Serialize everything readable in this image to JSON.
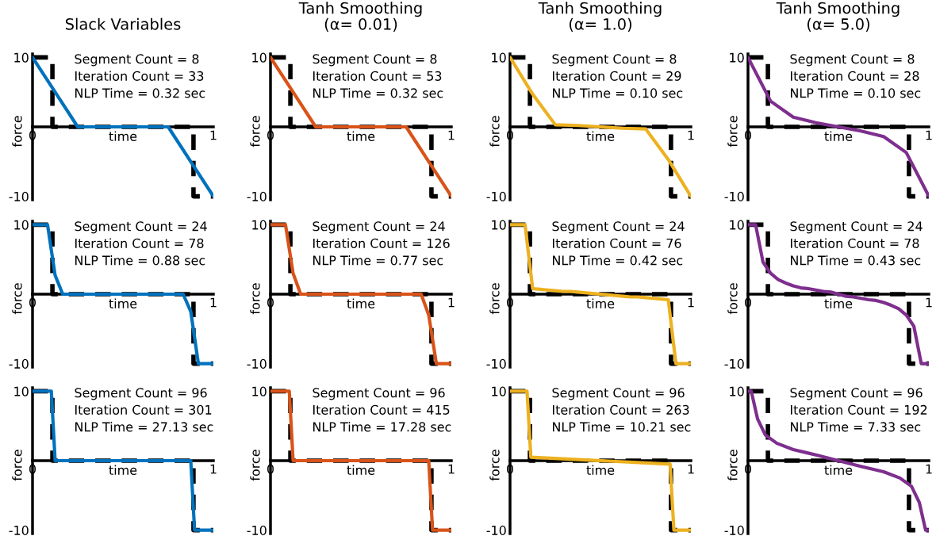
{
  "chart_data": [
    {
      "type": "line",
      "title": "Slack Variables",
      "xlabel": "time",
      "ylabel": "force",
      "xlim": [
        0,
        1
      ],
      "ylim": [
        -10.5,
        10.5
      ],
      "xticks": [
        0,
        1
      ],
      "yticks": [
        -10,
        10
      ],
      "line_style": "solid",
      "annotations": [
        "Segment Count = 8",
        "Iteration Count = 33",
        "NLP Time = 0.32 sec"
      ],
      "series": [
        {
          "color": "#000000",
          "line_style": "dashed",
          "x": [
            0,
            0.11,
            0.11,
            0.89,
            0.89,
            1
          ],
          "values": [
            10,
            10,
            0,
            0,
            -10,
            -10
          ]
        },
        {
          "color": "#0072bd",
          "x": [
            0,
            0.125,
            0.25,
            0.375,
            0.5,
            0.625,
            0.75,
            0.875,
            1
          ],
          "values": [
            10,
            5,
            0,
            0,
            0,
            0,
            0,
            -5,
            -10
          ]
        }
      ]
    },
    {
      "type": "line",
      "title": "Tanh Smoothing\n(α= 0.01)",
      "xlabel": "time",
      "ylabel": "force",
      "xlim": [
        0,
        1
      ],
      "ylim": [
        -10.5,
        10.5
      ],
      "xticks": [
        0,
        1
      ],
      "yticks": [
        -10,
        10
      ],
      "line_style": "solid",
      "annotations": [
        "Segment Count = 8",
        "Iteration Count = 53",
        "NLP Time = 0.32 sec"
      ],
      "series": [
        {
          "color": "#000000",
          "line_style": "dashed",
          "x": [
            0,
            0.11,
            0.11,
            0.89,
            0.89,
            1
          ],
          "values": [
            10,
            10,
            0,
            0,
            -10,
            -10
          ]
        },
        {
          "color": "#d95319",
          "x": [
            0,
            0.125,
            0.25,
            0.375,
            0.5,
            0.625,
            0.75,
            0.875,
            1
          ],
          "values": [
            10,
            5,
            0,
            0,
            0,
            0,
            0,
            -5,
            -10
          ]
        }
      ]
    },
    {
      "type": "line",
      "title": "Tanh Smoothing\n(α= 1.0)",
      "xlabel": "time",
      "ylabel": "force",
      "xlim": [
        0,
        1
      ],
      "ylim": [
        -10.5,
        10.5
      ],
      "xticks": [
        0,
        1
      ],
      "yticks": [
        -10,
        10
      ],
      "line_style": "solid",
      "annotations": [
        "Segment Count = 8",
        "Iteration Count = 29",
        "NLP Time = 0.10 sec"
      ],
      "series": [
        {
          "color": "#000000",
          "line_style": "dashed",
          "x": [
            0,
            0.11,
            0.11,
            0.89,
            0.89,
            1
          ],
          "values": [
            10,
            10,
            0,
            0,
            -10,
            -10
          ]
        },
        {
          "color": "#edb120",
          "x": [
            0,
            0.125,
            0.25,
            0.375,
            0.5,
            0.625,
            0.75,
            0.875,
            1
          ],
          "values": [
            10,
            4.7,
            0.3,
            0.2,
            0,
            -0.2,
            -0.3,
            -4.7,
            -10
          ]
        }
      ]
    },
    {
      "type": "line",
      "title": "Tanh Smoothing\n(α= 5.0)",
      "xlabel": "time",
      "ylabel": "force",
      "xlim": [
        0,
        1
      ],
      "ylim": [
        -10.5,
        10.5
      ],
      "xticks": [
        0,
        1
      ],
      "yticks": [
        -10,
        10
      ],
      "line_style": "solid",
      "annotations": [
        "Segment Count = 8",
        "Iteration Count = 28",
        "NLP Time = 0.10 sec"
      ],
      "series": [
        {
          "color": "#000000",
          "line_style": "dashed",
          "x": [
            0,
            0.11,
            0.11,
            0.89,
            0.89,
            1
          ],
          "values": [
            10,
            10,
            0,
            0,
            -10,
            -10
          ]
        },
        {
          "color": "#7e2f8e",
          "x": [
            0,
            0.125,
            0.25,
            0.375,
            0.5,
            0.625,
            0.75,
            0.875,
            1
          ],
          "values": [
            10,
            3.7,
            1.4,
            0.6,
            0,
            -0.6,
            -1.4,
            -3.7,
            -10
          ]
        }
      ]
    },
    {
      "type": "line",
      "xlabel": "time",
      "ylabel": "force",
      "xlim": [
        0,
        1
      ],
      "ylim": [
        -10.5,
        10.5
      ],
      "xticks": [
        0,
        1
      ],
      "yticks": [
        -10,
        10
      ],
      "line_style": "solid",
      "annotations": [
        "Segment Count = 24",
        "Iteration Count = 78",
        "NLP Time = 0.88 sec"
      ],
      "series": [
        {
          "color": "#000000",
          "line_style": "dashed",
          "x": [
            0,
            0.11,
            0.11,
            0.89,
            0.89,
            1
          ],
          "values": [
            10,
            10,
            0,
            0,
            -10,
            -10
          ]
        },
        {
          "color": "#0072bd",
          "x": [
            0,
            0.042,
            0.083,
            0.125,
            0.167,
            0.208,
            0.25,
            0.292,
            0.333,
            0.375,
            0.417,
            0.458,
            0.5,
            0.542,
            0.583,
            0.625,
            0.667,
            0.708,
            0.75,
            0.792,
            0.833,
            0.875,
            0.917,
            0.958,
            1
          ],
          "values": [
            10,
            10,
            10,
            2.7,
            0,
            0,
            0,
            0,
            0,
            0,
            0,
            0,
            0,
            0,
            0,
            0,
            0,
            0,
            0,
            0,
            0,
            -2.5,
            -10,
            -10,
            -10
          ]
        }
      ]
    },
    {
      "type": "line",
      "xlabel": "time",
      "ylabel": "force",
      "xlim": [
        0,
        1
      ],
      "ylim": [
        -10.5,
        10.5
      ],
      "xticks": [
        0,
        1
      ],
      "yticks": [
        -10,
        10
      ],
      "line_style": "solid",
      "annotations": [
        "Segment Count = 24",
        "Iteration Count = 126",
        "NLP Time = 0.77 sec"
      ],
      "series": [
        {
          "color": "#000000",
          "line_style": "dashed",
          "x": [
            0,
            0.11,
            0.11,
            0.89,
            0.89,
            1
          ],
          "values": [
            10,
            10,
            0,
            0,
            -10,
            -10
          ]
        },
        {
          "color": "#d95319",
          "x": [
            0,
            0.042,
            0.083,
            0.125,
            0.167,
            0.208,
            0.25,
            0.292,
            0.333,
            0.375,
            0.417,
            0.458,
            0.5,
            0.542,
            0.583,
            0.625,
            0.667,
            0.708,
            0.75,
            0.792,
            0.833,
            0.875,
            0.917,
            0.958,
            1
          ],
          "values": [
            10,
            10,
            10,
            3,
            0,
            0,
            0,
            0,
            0,
            0,
            0,
            0,
            0,
            0,
            0,
            0,
            0,
            0,
            0,
            0,
            0,
            -3,
            -10,
            -10,
            -10
          ]
        }
      ]
    },
    {
      "type": "line",
      "xlabel": "time",
      "ylabel": "force",
      "xlim": [
        0,
        1
      ],
      "ylim": [
        -10.5,
        10.5
      ],
      "xticks": [
        0,
        1
      ],
      "yticks": [
        -10,
        10
      ],
      "line_style": "solid",
      "annotations": [
        "Segment Count = 24",
        "Iteration Count = 76",
        "NLP Time = 0.42 sec"
      ],
      "series": [
        {
          "color": "#000000",
          "line_style": "dashed",
          "x": [
            0,
            0.11,
            0.11,
            0.89,
            0.89,
            1
          ],
          "values": [
            10,
            10,
            0,
            0,
            -10,
            -10
          ]
        },
        {
          "color": "#edb120",
          "x": [
            0,
            0.042,
            0.083,
            0.125,
            0.167,
            0.208,
            0.25,
            0.292,
            0.333,
            0.375,
            0.417,
            0.458,
            0.5,
            0.542,
            0.583,
            0.625,
            0.667,
            0.708,
            0.75,
            0.792,
            0.833,
            0.875,
            0.917,
            0.958,
            1
          ],
          "values": [
            10,
            10,
            10,
            0.8,
            0.7,
            0.6,
            0.5,
            0.4,
            0.4,
            0.3,
            0.2,
            0.1,
            0,
            -0.1,
            -0.2,
            -0.3,
            -0.4,
            -0.4,
            -0.5,
            -0.6,
            -0.7,
            -0.8,
            -10,
            -10,
            -10
          ]
        }
      ]
    },
    {
      "type": "line",
      "xlabel": "time",
      "ylabel": "force",
      "xlim": [
        0,
        1
      ],
      "ylim": [
        -10.5,
        10.5
      ],
      "xticks": [
        0,
        1
      ],
      "yticks": [
        -10,
        10
      ],
      "line_style": "solid",
      "annotations": [
        "Segment Count = 24",
        "Iteration Count = 78",
        "NLP Time = 0.43 sec"
      ],
      "series": [
        {
          "color": "#000000",
          "line_style": "dashed",
          "x": [
            0,
            0.11,
            0.11,
            0.89,
            0.89,
            1
          ],
          "values": [
            10,
            10,
            0,
            0,
            -10,
            -10
          ]
        },
        {
          "color": "#7e2f8e",
          "x": [
            0,
            0.042,
            0.083,
            0.125,
            0.167,
            0.208,
            0.25,
            0.292,
            0.333,
            0.375,
            0.417,
            0.458,
            0.5,
            0.542,
            0.583,
            0.625,
            0.667,
            0.708,
            0.75,
            0.792,
            0.833,
            0.875,
            0.917,
            0.958,
            1
          ],
          "values": [
            10,
            10,
            4.6,
            3,
            2.1,
            1.6,
            1.2,
            0.9,
            0.8,
            0.6,
            0.4,
            0.3,
            0,
            -0.3,
            -0.4,
            -0.6,
            -0.8,
            -0.9,
            -1.2,
            -1.6,
            -2.1,
            -3,
            -4.6,
            -10,
            -10
          ]
        }
      ]
    },
    {
      "type": "line",
      "xlabel": "time",
      "ylabel": "force",
      "xlim": [
        0,
        1
      ],
      "ylim": [
        -10.5,
        10.5
      ],
      "xticks": [
        0,
        1
      ],
      "yticks": [
        -10,
        10
      ],
      "line_style": "solid",
      "annotations": [
        "Segment Count = 96",
        "Iteration Count = 301",
        "NLP Time = 27.13 sec"
      ],
      "series": [
        {
          "color": "#000000",
          "line_style": "dashed",
          "x": [
            0,
            0.11,
            0.11,
            0.89,
            0.89,
            1
          ],
          "values": [
            10,
            10,
            0,
            0,
            -10,
            -10
          ]
        },
        {
          "color": "#0072bd",
          "x": [
            0,
            0.104,
            0.125,
            0.875,
            0.896,
            1
          ],
          "values": [
            10,
            10,
            0,
            0,
            -10,
            -10
          ]
        }
      ]
    },
    {
      "type": "line",
      "xlabel": "time",
      "ylabel": "force",
      "xlim": [
        0,
        1
      ],
      "ylim": [
        -10.5,
        10.5
      ],
      "xticks": [
        0,
        1
      ],
      "yticks": [
        -10,
        10
      ],
      "line_style": "solid",
      "annotations": [
        "Segment Count = 96",
        "Iteration Count = 415",
        "NLP Time = 17.28 sec"
      ],
      "series": [
        {
          "color": "#000000",
          "line_style": "dashed",
          "x": [
            0,
            0.11,
            0.11,
            0.89,
            0.89,
            1
          ],
          "values": [
            10,
            10,
            0,
            0,
            -10,
            -10
          ]
        },
        {
          "color": "#d95319",
          "x": [
            0,
            0.104,
            0.125,
            0.875,
            0.896,
            1
          ],
          "values": [
            10,
            10,
            0,
            0,
            -10,
            -10
          ]
        }
      ]
    },
    {
      "type": "line",
      "xlabel": "time",
      "ylabel": "force",
      "xlim": [
        0,
        1
      ],
      "ylim": [
        -10.5,
        10.5
      ],
      "xticks": [
        0,
        1
      ],
      "yticks": [
        -10,
        10
      ],
      "line_style": "solid",
      "annotations": [
        "Segment Count = 96",
        "Iteration Count = 263",
        "NLP Time = 10.21 sec"
      ],
      "series": [
        {
          "color": "#000000",
          "line_style": "dashed",
          "x": [
            0,
            0.11,
            0.11,
            0.89,
            0.89,
            1
          ],
          "values": [
            10,
            10,
            0,
            0,
            -10,
            -10
          ]
        },
        {
          "color": "#edb120",
          "x": [
            0,
            0.094,
            0.115,
            0.885,
            0.906,
            1
          ],
          "values": [
            10,
            10,
            0.5,
            -0.5,
            -10,
            -10
          ]
        }
      ]
    },
    {
      "type": "line",
      "xlabel": "time",
      "ylabel": "force",
      "xlim": [
        0,
        1
      ],
      "ylim": [
        -10.5,
        10.5
      ],
      "xticks": [
        0,
        1
      ],
      "yticks": [
        -10,
        10
      ],
      "line_style": "solid",
      "annotations": [
        "Segment Count = 96",
        "Iteration Count = 192",
        "NLP Time = 7.33 sec"
      ],
      "series": [
        {
          "color": "#000000",
          "line_style": "dashed",
          "x": [
            0,
            0.11,
            0.11,
            0.89,
            0.89,
            1
          ],
          "values": [
            10,
            10,
            0,
            0,
            -10,
            -10
          ]
        },
        {
          "color": "#7e2f8e",
          "x": [
            0,
            0.018,
            0.053,
            0.096,
            0.16,
            0.25,
            0.38,
            0.5,
            0.62,
            0.75,
            0.84,
            0.904,
            0.947,
            0.982,
            1
          ],
          "values": [
            10,
            10,
            6,
            3.7,
            2.5,
            1.6,
            0.8,
            0,
            -0.8,
            -1.6,
            -2.5,
            -3.7,
            -6,
            -10,
            -10
          ]
        }
      ]
    }
  ]
}
